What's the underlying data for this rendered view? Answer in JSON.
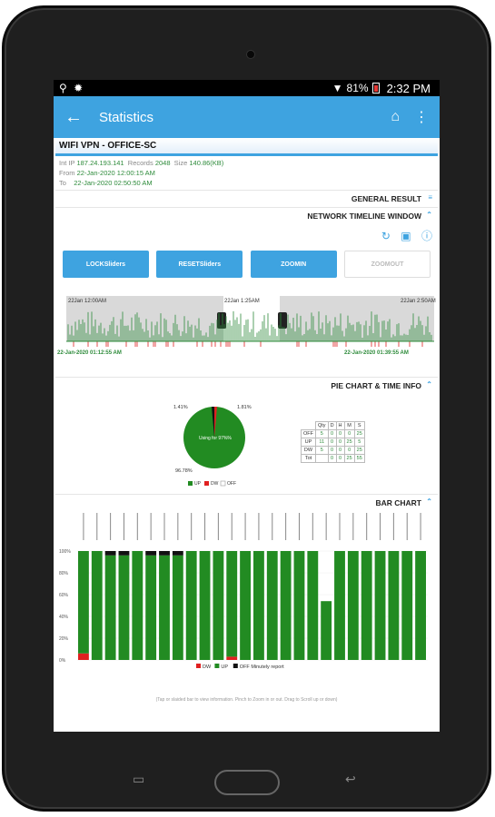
{
  "status": {
    "icons_left": [
      "usb-icon",
      "gear-icon"
    ],
    "battery": "81%",
    "time": "2:32 PM"
  },
  "appbar": {
    "title": "Statistics"
  },
  "vpn": {
    "title": "WIFI VPN - OFFICE-SC",
    "int_ip_label": "Int IP",
    "int_ip": "187.24.193.141",
    "records_label": "Records",
    "records": "2048",
    "size_label": "Size",
    "size": "140.86(KB)",
    "from_label": "From",
    "from": "22-Jan-2020 12:00:15 AM",
    "to_label": "To",
    "to": "22-Jan-2020 02:50:50 AM"
  },
  "sections": {
    "general": "GENERAL RESULT",
    "timeline": "NETWORK TIMELINE WINDOW",
    "pie": "PIE CHART & TIME INFO",
    "bar": "BAR CHART"
  },
  "buttons": {
    "lock": [
      "LOCK",
      "Sliders"
    ],
    "reset": [
      "RESET",
      "Sliders"
    ],
    "zoomin": [
      "ZOOM",
      "IN"
    ],
    "zoomout": [
      "ZOOM",
      "OUT"
    ]
  },
  "timeline": {
    "left_window": "22Jan 12:00AM",
    "mid_window": "22Jan 1:25AM",
    "right_window": "22Jan 2:50AM",
    "start": "22-Jan-2020 01:12:55 AM",
    "end": "22-Jan-2020 01:39:55 AM"
  },
  "pie": {
    "label_left": "1.41%",
    "label_right": "1.81%",
    "label_bottom": "96.78%",
    "center": "Using for 97%%",
    "legend": [
      "UP",
      "DW",
      "OFF"
    ],
    "table": {
      "headers": [
        "Qty",
        "D",
        "H",
        "M",
        "S"
      ],
      "rows": [
        [
          "OFF",
          "5",
          "0",
          "0",
          "0",
          "25"
        ],
        [
          "UP",
          "11",
          "0",
          "0",
          "25",
          "5"
        ],
        [
          "DW",
          "5",
          "0",
          "0",
          "0",
          "25"
        ],
        [
          "Tot",
          "",
          "0",
          "0",
          "25",
          "55"
        ]
      ]
    }
  },
  "chart_data": {
    "type": "bar",
    "title": "",
    "ylabels": [
      "100%",
      "80%",
      "60%",
      "40%",
      "20%",
      "0%"
    ],
    "ylim": [
      0,
      100
    ],
    "series": [
      {
        "name": "DW",
        "color": "#e02020",
        "values": [
          6,
          0,
          0,
          0,
          0,
          0,
          0,
          0,
          0,
          0,
          0,
          3,
          0,
          0,
          0,
          0,
          0,
          0,
          0,
          0,
          0,
          0,
          0,
          0,
          0,
          0,
          0,
          0,
          0,
          0,
          0,
          0,
          0,
          0,
          0,
          0,
          0,
          0,
          0,
          0,
          0,
          0,
          0,
          0,
          0,
          0,
          0,
          0,
          0,
          0
        ]
      },
      {
        "name": "UP",
        "color": "#228b22",
        "values": [
          94,
          100,
          96,
          96,
          100,
          96,
          96,
          96,
          100,
          100,
          100,
          97,
          100,
          100,
          100,
          100,
          100,
          100,
          54,
          100,
          100,
          100,
          100,
          100,
          100,
          100,
          100,
          100,
          100,
          100,
          100,
          100,
          100,
          100,
          100,
          100,
          100,
          100,
          100,
          100,
          100,
          100,
          100,
          100,
          100,
          100,
          100,
          100,
          100,
          100
        ]
      },
      {
        "name": "OFF",
        "color": "#111111",
        "values": [
          0,
          0,
          4,
          4,
          0,
          4,
          4,
          4,
          0,
          0,
          0,
          0,
          0,
          0,
          0,
          0,
          0,
          0,
          0,
          0,
          0,
          0,
          0,
          0,
          0,
          0,
          0,
          0,
          0,
          0,
          0,
          0,
          0,
          0,
          0,
          0,
          0,
          0,
          0,
          0,
          0,
          0,
          0,
          0,
          0,
          0,
          0,
          0,
          0,
          0
        ]
      }
    ],
    "legend": [
      "DW",
      "UP",
      "OFF Minutely report"
    ],
    "note": "(Tap or slaided bar to view information. Pinch to Zoom in or out. Drag to Scroll up or down)"
  }
}
